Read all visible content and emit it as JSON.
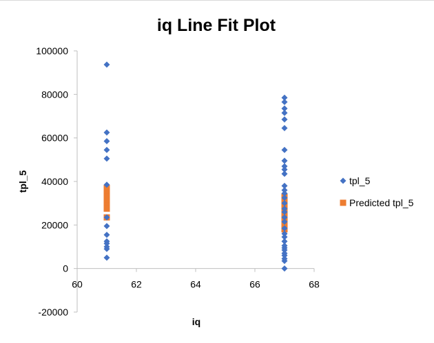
{
  "chart_data": {
    "type": "scatter",
    "title": "iq Line Fit  Plot",
    "xlabel": "iq",
    "ylabel": "tpl_5",
    "xlim": [
      60,
      68
    ],
    "ylim": [
      -20000,
      100000
    ],
    "x_ticks": [
      "60",
      "62",
      "64",
      "66",
      "68"
    ],
    "y_ticks": [
      "-20000",
      "0",
      "20000",
      "40000",
      "60000",
      "80000",
      "100000"
    ],
    "legend_position": "right",
    "grid": false,
    "series": [
      {
        "name": "tpl_5",
        "color": "#4472c4",
        "marker": "diamond",
        "points": [
          {
            "x": 61,
            "y": 93700
          },
          {
            "x": 61,
            "y": 62500
          },
          {
            "x": 61,
            "y": 58500
          },
          {
            "x": 61,
            "y": 54500
          },
          {
            "x": 61,
            "y": 50500
          },
          {
            "x": 61,
            "y": 38500
          },
          {
            "x": 61,
            "y": 23500
          },
          {
            "x": 61,
            "y": 19500
          },
          {
            "x": 61,
            "y": 15500
          },
          {
            "x": 61,
            "y": 12500
          },
          {
            "x": 61,
            "y": 11500
          },
          {
            "x": 61,
            "y": 10000
          },
          {
            "x": 61,
            "y": 9000
          },
          {
            "x": 61,
            "y": 5000
          },
          {
            "x": 67,
            "y": 78500
          },
          {
            "x": 67,
            "y": 76500
          },
          {
            "x": 67,
            "y": 73500
          },
          {
            "x": 67,
            "y": 71500
          },
          {
            "x": 67,
            "y": 68500
          },
          {
            "x": 67,
            "y": 64500
          },
          {
            "x": 67,
            "y": 54500
          },
          {
            "x": 67,
            "y": 49500
          },
          {
            "x": 67,
            "y": 47000
          },
          {
            "x": 67,
            "y": 45500
          },
          {
            "x": 67,
            "y": 43500
          },
          {
            "x": 67,
            "y": 38000
          },
          {
            "x": 67,
            "y": 36000
          },
          {
            "x": 67,
            "y": 34500
          },
          {
            "x": 67,
            "y": 32500
          },
          {
            "x": 67,
            "y": 30000
          },
          {
            "x": 67,
            "y": 27500
          },
          {
            "x": 67,
            "y": 26000
          },
          {
            "x": 67,
            "y": 23500
          },
          {
            "x": 67,
            "y": 21500
          },
          {
            "x": 67,
            "y": 18500
          },
          {
            "x": 67,
            "y": 16000
          },
          {
            "x": 67,
            "y": 14500
          },
          {
            "x": 67,
            "y": 12500
          },
          {
            "x": 67,
            "y": 10500
          },
          {
            "x": 67,
            "y": 9500
          },
          {
            "x": 67,
            "y": 8500
          },
          {
            "x": 67,
            "y": 7000
          },
          {
            "x": 67,
            "y": 6000
          },
          {
            "x": 67,
            "y": 4500
          },
          {
            "x": 67,
            "y": 3500
          },
          {
            "x": 67,
            "y": 0
          }
        ]
      },
      {
        "name": "Predicted tpl_5",
        "color": "#ed7d31",
        "marker": "square",
        "points": [
          {
            "x": 61,
            "y": 37000
          },
          {
            "x": 61,
            "y": 35000
          },
          {
            "x": 61,
            "y": 33000
          },
          {
            "x": 61,
            "y": 31000
          },
          {
            "x": 61,
            "y": 29000
          },
          {
            "x": 61,
            "y": 27500
          },
          {
            "x": 61,
            "y": 23500
          },
          {
            "x": 67,
            "y": 33000
          },
          {
            "x": 67,
            "y": 31000
          },
          {
            "x": 67,
            "y": 29000
          },
          {
            "x": 67,
            "y": 27000
          },
          {
            "x": 67,
            "y": 25000
          },
          {
            "x": 67,
            "y": 23000
          },
          {
            "x": 67,
            "y": 21000
          },
          {
            "x": 67,
            "y": 19000
          },
          {
            "x": 67,
            "y": 18000
          }
        ]
      }
    ]
  }
}
